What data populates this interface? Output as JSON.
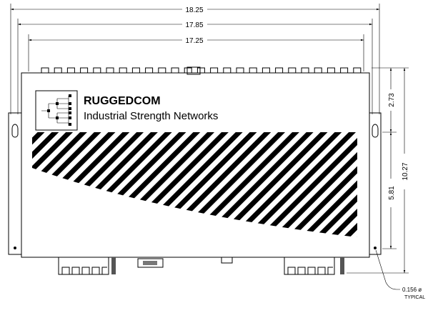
{
  "dimensions": {
    "overall_width": "18.25",
    "bracket_width": "17.85",
    "body_width": "17.25",
    "top_to_hole": "2.73",
    "overall_height": "10.27",
    "hole_spacing": "5.81",
    "hole_diameter": "0.156 ø",
    "hole_note": "TYPICAL"
  },
  "logo": {
    "brand": "RUGGEDCOM",
    "tagline": "Industrial Strength Networks"
  }
}
